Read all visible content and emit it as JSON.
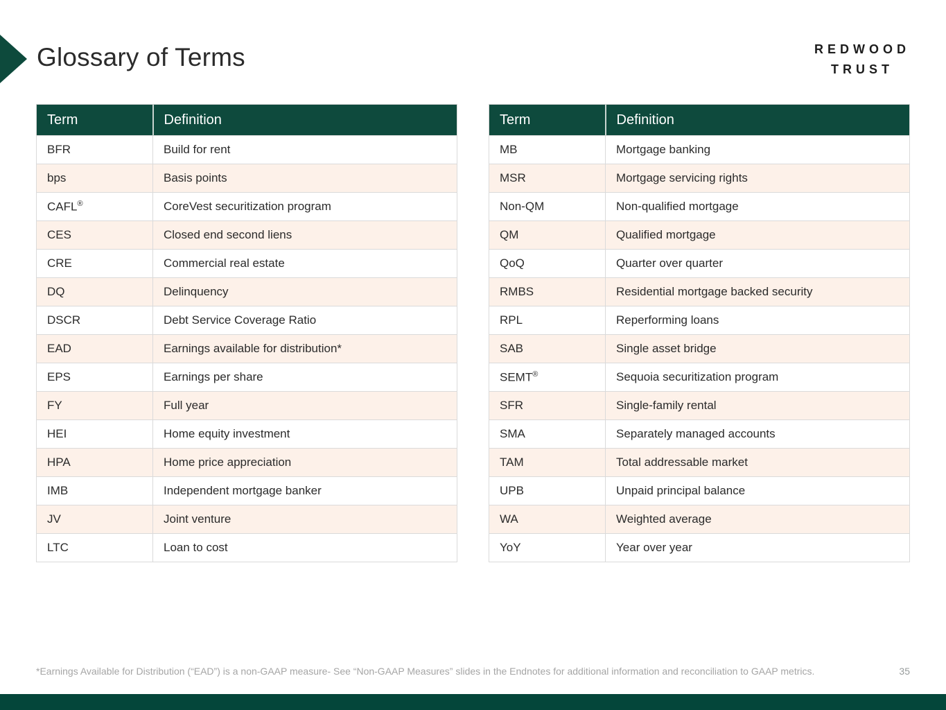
{
  "page": {
    "title": "Glossary of Terms",
    "footnote": "*Earnings Available for Distribution (“EAD”) is a non-GAAP measure- See “Non-GAAP Measures” slides in the Endnotes for additional information and reconciliation to GAAP metrics.",
    "page_number": "35"
  },
  "logo": {
    "line1": "REDWOOD",
    "line2": "TRUST"
  },
  "colors": {
    "brand_green": "#0e4a3d",
    "footer_green": "#04463a",
    "alt_row_peach": "#fdf1e9",
    "header_text": "#ffffff",
    "body_text": "#2b2b2b",
    "footnote_gray": "#a5a5a5"
  },
  "tables": [
    {
      "headers": [
        "Term",
        "Definition"
      ],
      "rows": [
        {
          "term": "BFR",
          "definition": "Build for rent"
        },
        {
          "term": "bps",
          "definition": "Basis points"
        },
        {
          "term": "CAFL",
          "term_sup": "®",
          "definition": "CoreVest securitization program"
        },
        {
          "term": "CES",
          "definition": "Closed end second liens"
        },
        {
          "term": "CRE",
          "definition": "Commercial real estate"
        },
        {
          "term": "DQ",
          "definition": "Delinquency"
        },
        {
          "term": "DSCR",
          "definition": "Debt Service Coverage Ratio"
        },
        {
          "term": "EAD",
          "definition": "Earnings available for distribution*"
        },
        {
          "term": "EPS",
          "definition": "Earnings per share"
        },
        {
          "term": "FY",
          "definition": "Full year"
        },
        {
          "term": "HEI",
          "definition": "Home equity investment"
        },
        {
          "term": "HPA",
          "definition": "Home price appreciation"
        },
        {
          "term": "IMB",
          "definition": "Independent mortgage banker"
        },
        {
          "term": "JV",
          "definition": "Joint venture"
        },
        {
          "term": "LTC",
          "definition": "Loan to cost"
        }
      ]
    },
    {
      "headers": [
        "Term",
        "Definition"
      ],
      "rows": [
        {
          "term": "MB",
          "definition": "Mortgage banking"
        },
        {
          "term": "MSR",
          "definition": "Mortgage servicing rights"
        },
        {
          "term": "Non-QM",
          "definition": "Non-qualified mortgage"
        },
        {
          "term": "QM",
          "definition": "Qualified mortgage"
        },
        {
          "term": "QoQ",
          "definition": "Quarter over quarter"
        },
        {
          "term": "RMBS",
          "definition": "Residential mortgage backed security"
        },
        {
          "term": "RPL",
          "definition": "Reperforming loans"
        },
        {
          "term": "SAB",
          "definition": "Single asset bridge"
        },
        {
          "term": "SEMT",
          "term_sup": "®",
          "definition": "Sequoia securitization program"
        },
        {
          "term": "SFR",
          "definition": "Single-family rental"
        },
        {
          "term": "SMA",
          "definition": "Separately managed accounts"
        },
        {
          "term": "TAM",
          "definition": "Total addressable market"
        },
        {
          "term": "UPB",
          "definition": "Unpaid principal balance"
        },
        {
          "term": "WA",
          "definition": "Weighted average"
        },
        {
          "term": "YoY",
          "definition": "Year over year"
        }
      ]
    }
  ]
}
